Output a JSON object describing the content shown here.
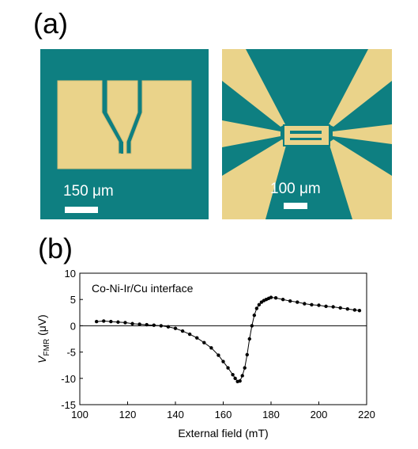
{
  "figure": {
    "panel_a_label": "(a)",
    "panel_b_label": "(b)",
    "left_image": {
      "scale_bar_text": "150 μm"
    },
    "right_image": {
      "scale_bar_text": "100 μm"
    },
    "colors": {
      "substrate": "#0e7f81",
      "gold": "#ead38a",
      "gold_edge": "#d9c078"
    }
  },
  "chart_data": {
    "type": "scatter",
    "annotation": "Co-Ni-Ir/Cu interface",
    "xlabel": "External field (mT)",
    "ylabel_main": "V",
    "ylabel_sub": "FMR",
    "ylabel_unit": " (μV)",
    "xlim": [
      100,
      220
    ],
    "ylim": [
      -15,
      10
    ],
    "xticks": [
      100,
      120,
      140,
      160,
      180,
      200,
      220
    ],
    "yticks": [
      -15,
      -10,
      -5,
      0,
      5,
      10
    ],
    "zero_line": true,
    "series": [
      {
        "x": [
          107,
          110,
          113,
          116,
          119,
          122,
          125,
          128,
          131,
          134,
          137,
          140,
          143,
          146,
          149,
          152,
          155,
          158,
          160,
          162,
          164,
          165,
          166,
          167,
          168,
          169,
          170,
          171,
          172,
          173,
          174,
          175,
          176,
          177,
          178,
          179,
          180,
          182,
          185,
          188,
          191,
          194,
          197,
          200,
          203,
          206,
          209,
          212,
          215,
          217
        ],
        "y": [
          0.8,
          0.9,
          0.8,
          0.7,
          0.6,
          0.4,
          0.3,
          0.2,
          0.1,
          0.0,
          -0.2,
          -0.5,
          -1.0,
          -1.6,
          -2.3,
          -3.2,
          -4.2,
          -5.6,
          -6.8,
          -8.0,
          -9.3,
          -10.0,
          -10.6,
          -10.5,
          -9.5,
          -8.0,
          -5.5,
          -2.5,
          0.0,
          2.0,
          3.3,
          4.0,
          4.5,
          4.8,
          5.0,
          5.2,
          5.4,
          5.3,
          5.0,
          4.7,
          4.5,
          4.2,
          4.0,
          3.9,
          3.7,
          3.6,
          3.4,
          3.2,
          3.0,
          2.9
        ]
      }
    ]
  }
}
